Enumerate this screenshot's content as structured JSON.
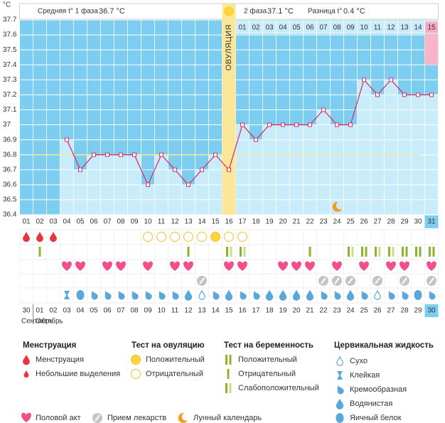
{
  "header": {
    "phase1_label": "Средняя t° 1 фаза",
    "phase1_value": "36.7 °C",
    "phase2_label": "2 фаза",
    "phase2_value": "37.1 °C",
    "diff_label": "Разница t°",
    "diff_value": "0.4 °C"
  },
  "chart_data": {
    "type": "line",
    "ylabel": "°C",
    "categories": [
      "01",
      "02",
      "03",
      "04",
      "05",
      "06",
      "07",
      "08",
      "09",
      "10",
      "11",
      "12",
      "13",
      "14",
      "15",
      "16",
      "17",
      "18",
      "19",
      "20",
      "21",
      "22",
      "23",
      "24",
      "25",
      "26",
      "27",
      "28",
      "29",
      "30",
      "31"
    ],
    "values": [
      null,
      null,
      null,
      36.9,
      36.7,
      36.8,
      36.8,
      36.8,
      36.8,
      36.6,
      36.8,
      36.7,
      36.6,
      36.7,
      36.8,
      36.7,
      37,
      36.9,
      37,
      37,
      37,
      37,
      37.1,
      37,
      37,
      37.3,
      37.2,
      37.3,
      37.2,
      37.2,
      37.2
    ],
    "line_color": "#d8316a",
    "bar_color": "#c9ecfb",
    "background_color": "#7dcdf0",
    "ylim": [
      36.4,
      37.7
    ],
    "yticks": [
      37.7,
      37.6,
      37.5,
      37.4,
      37.3,
      37.2,
      37.1,
      37,
      36.9,
      36.8,
      36.7,
      36.6,
      36.5,
      36.4
    ],
    "grid": true,
    "coverline": 36.8,
    "coverline_color": "#f3ea9a",
    "ovulation": {
      "label": "ОВУЛЯЦИЯ",
      "category": "16"
    },
    "phase2_days": [
      "01",
      "02",
      "03",
      "04",
      "05",
      "06",
      "07",
      "08",
      "09",
      "10",
      "11",
      "12",
      "13",
      "14",
      "15"
    ],
    "today": {
      "category": "31",
      "date": "30"
    },
    "moon": "24"
  },
  "daily": {
    "menstruation": [
      "menses",
      "menses",
      "menses",
      null,
      null,
      null,
      null,
      null,
      null,
      null,
      null,
      null,
      null,
      null,
      null,
      null,
      null,
      null,
      null,
      null,
      null,
      null,
      null,
      null,
      null,
      null,
      null,
      null,
      null,
      null,
      null
    ],
    "ovulation_test": [
      null,
      null,
      null,
      null,
      null,
      null,
      null,
      null,
      null,
      "ovu_neg",
      "ovu_neg",
      "ovu_neg",
      "ovu_neg",
      "ovu_neg",
      "ovu_pos",
      "ovu_neg",
      "ovu_neg",
      null,
      null,
      null,
      null,
      null,
      null,
      null,
      null,
      null,
      null,
      null,
      null,
      null,
      null
    ],
    "pregnancy_test": [
      null,
      "preg_neg",
      null,
      null,
      null,
      null,
      null,
      null,
      null,
      null,
      null,
      null,
      "preg_neg",
      null,
      null,
      "preg_weak",
      "preg_weak",
      null,
      null,
      null,
      null,
      "preg_neg",
      null,
      null,
      "preg_weak",
      "preg_pos",
      "preg_weak",
      "preg_weak",
      "preg_pos",
      "preg_pos",
      "preg_pos"
    ],
    "sex": [
      null,
      null,
      null,
      "sex",
      "sex",
      null,
      "sex",
      "sex",
      null,
      "sex",
      null,
      "sex",
      "sex",
      null,
      null,
      "sex",
      "sex",
      null,
      null,
      "sex",
      "sex",
      "sex",
      null,
      "sex",
      null,
      "sex",
      null,
      "sex",
      "sex",
      null,
      "sex"
    ],
    "medication": [
      null,
      null,
      null,
      null,
      null,
      null,
      null,
      null,
      null,
      null,
      null,
      null,
      null,
      "med",
      null,
      null,
      null,
      null,
      null,
      null,
      null,
      null,
      "med",
      "med",
      "med",
      null,
      "med",
      null,
      "med",
      null,
      "med"
    ],
    "cervical_fluid": [
      null,
      null,
      null,
      "sticky",
      "eggwhite",
      "creamy",
      "creamy",
      "creamy",
      "creamy",
      "creamy",
      "creamy",
      "creamy",
      "watery",
      "dry",
      "creamy",
      "watery",
      "creamy",
      "creamy",
      "watery",
      "watery",
      "watery",
      "watery",
      "creamy",
      "creamy",
      "watery",
      "creamy",
      "dry",
      "creamy",
      "creamy",
      "eggwhite",
      "creamy"
    ]
  },
  "dates": [
    {
      "label": "30",
      "weekend": false
    },
    {
      "label": "01",
      "weekend": false
    },
    {
      "label": "02",
      "weekend": false
    },
    {
      "label": "03",
      "weekend": false
    },
    {
      "label": "04",
      "weekend": false
    },
    {
      "label": "05",
      "weekend": true
    },
    {
      "label": "06",
      "weekend": true
    },
    {
      "label": "07",
      "weekend": false
    },
    {
      "label": "08",
      "weekend": false
    },
    {
      "label": "09",
      "weekend": false
    },
    {
      "label": "10",
      "weekend": false
    },
    {
      "label": "11",
      "weekend": false
    },
    {
      "label": "12",
      "weekend": true
    },
    {
      "label": "13",
      "weekend": true
    },
    {
      "label": "14",
      "weekend": false
    },
    {
      "label": "15",
      "weekend": false
    },
    {
      "label": "16",
      "weekend": false
    },
    {
      "label": "17",
      "weekend": false
    },
    {
      "label": "18",
      "weekend": false
    },
    {
      "label": "19",
      "weekend": true
    },
    {
      "label": "20",
      "weekend": true
    },
    {
      "label": "21",
      "weekend": false
    },
    {
      "label": "22",
      "weekend": false
    },
    {
      "label": "23",
      "weekend": false
    },
    {
      "label": "24",
      "weekend": false
    },
    {
      "label": "25",
      "weekend": false
    },
    {
      "label": "26",
      "weekend": true
    },
    {
      "label": "27",
      "weekend": true
    },
    {
      "label": "28",
      "weekend": false
    },
    {
      "label": "29",
      "weekend": false
    },
    {
      "label": "30",
      "weekend": false
    }
  ],
  "months": [
    "Сентябрь",
    "Октябрь"
  ],
  "legend": {
    "groups": [
      {
        "title": "Менструация",
        "items": [
          {
            "label": "Менструация",
            "icon": "menses"
          },
          {
            "label": "Небольшие выделения",
            "icon": "spotting"
          }
        ]
      },
      {
        "title": "Тест на овуляцию",
        "items": [
          {
            "label": "Положительный",
            "icon": "ovu_pos"
          },
          {
            "label": "Отрицательный",
            "icon": "ovu_neg"
          }
        ]
      },
      {
        "title": "Тест на беременность",
        "items": [
          {
            "label": "Положительный",
            "icon": "preg_pos"
          },
          {
            "label": "Отрицательный",
            "icon": "preg_neg"
          },
          {
            "label": "Слабоположительный",
            "icon": "preg_weak"
          }
        ]
      },
      {
        "title": "Цервикальная жидкость",
        "items": [
          {
            "label": "Сухо",
            "icon": "dry"
          },
          {
            "label": "Клейкая",
            "icon": "sticky"
          },
          {
            "label": "Кремообразная",
            "icon": "creamy"
          },
          {
            "label": "Водянистая",
            "icon": "watery"
          },
          {
            "label": "Яичный белок",
            "icon": "eggwhite"
          }
        ]
      }
    ],
    "extra": [
      {
        "label": "Половой акт",
        "icon": "sex"
      },
      {
        "label": "Прием лекарств",
        "icon": "med"
      },
      {
        "label": "Лунный календарь",
        "icon": "moon"
      }
    ]
  }
}
